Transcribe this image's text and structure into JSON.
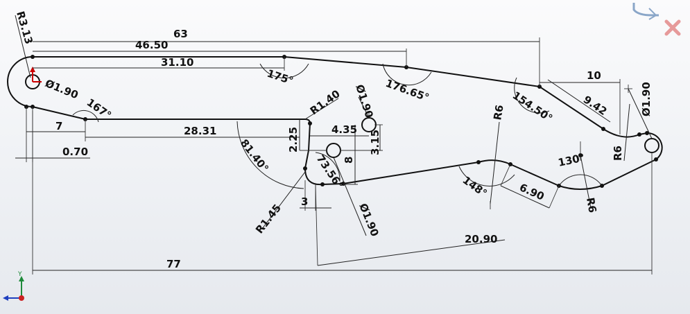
{
  "colors": {
    "geometry": "#111111",
    "origin": "#cc0000",
    "axis_x": "#1f3fbf",
    "axis_y": "#1e8a3a",
    "accent": "#b34a00"
  },
  "icons": [
    "confirm-corner-icon",
    "cancel-icon",
    "origin-icon",
    "triad-icon"
  ],
  "triad": {
    "y_label": "Y"
  },
  "dimensions": {
    "overall_length": "77",
    "top_length_63": "63",
    "top_length_46_50": "46.50",
    "top_length_31_10": "31.10",
    "radius_left": "R3.13",
    "hole_left": "Ø1.90",
    "angle_167": "167°",
    "len_7": "7",
    "len_0_70": "0.70",
    "len_28_31": "28.31",
    "angle_175": "175°",
    "angle_176_65": "176.65°",
    "angle_154_50": "154.50°",
    "len_10": "10",
    "len_9_42": "9.42",
    "hole_right": "Ø1.90",
    "radius_r6_a": "R6",
    "radius_r6_b": "R6",
    "radius_r6_c": "R6",
    "angle_130": "130°",
    "len_6_90": "6.90",
    "angle_148": "148°",
    "len_20_90": "20.90",
    "radius_r1_40": "R1.40",
    "hole_mid_top": "Ø1.90",
    "len_4_35": "4.35",
    "len_3_15": "3.15",
    "len_2_25": "2.25",
    "len_8": "8",
    "angle_73_56": "73.56°",
    "angle_81_40": "81.40°",
    "radius_r1_45": "R1.45",
    "len_3": "3",
    "hole_mid_bottom": "Ø1.90"
  }
}
